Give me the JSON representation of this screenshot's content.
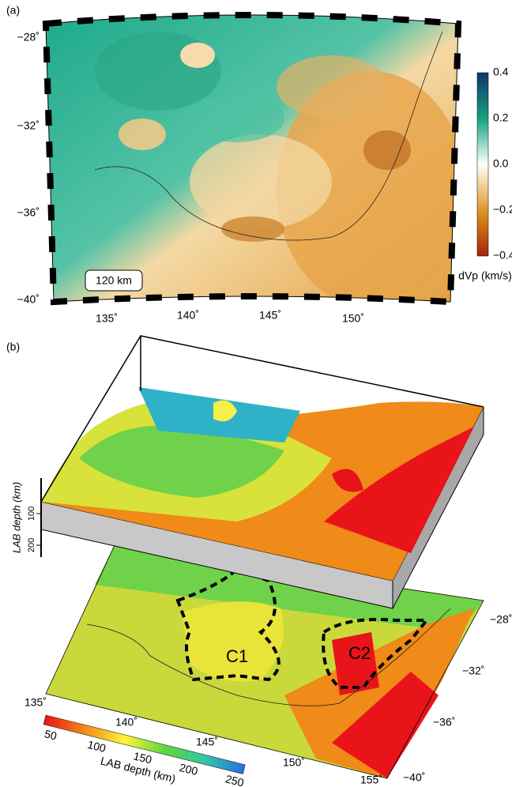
{
  "panel_a": {
    "label": "(a)",
    "depth_label": "120 km",
    "lat_labels": [
      "−28˚",
      "−32˚",
      "−36˚",
      "−40˚"
    ],
    "lon_labels": [
      "135˚",
      "140˚",
      "145˚",
      "150˚"
    ],
    "colorbar": {
      "ticks": [
        "0.4",
        "0.2",
        "0.0",
        "−0.2",
        "−0.4"
      ],
      "title": "dVp (km/s)"
    }
  },
  "panel_b": {
    "label": "(b)",
    "depth_axis": {
      "title": "LAB depth (km)",
      "ticks": [
        "100",
        "200"
      ]
    },
    "regions": [
      "C1",
      "C2"
    ],
    "lon_labels": [
      "135˚",
      "140˚",
      "145˚",
      "150˚",
      "155˚"
    ],
    "lat_labels": [
      "−28˚",
      "−32˚",
      "−36˚",
      "−40˚"
    ],
    "colorbar": {
      "ticks": [
        "50",
        "100",
        "150",
        "200",
        "250"
      ],
      "title": "LAB depth (km)"
    }
  }
}
